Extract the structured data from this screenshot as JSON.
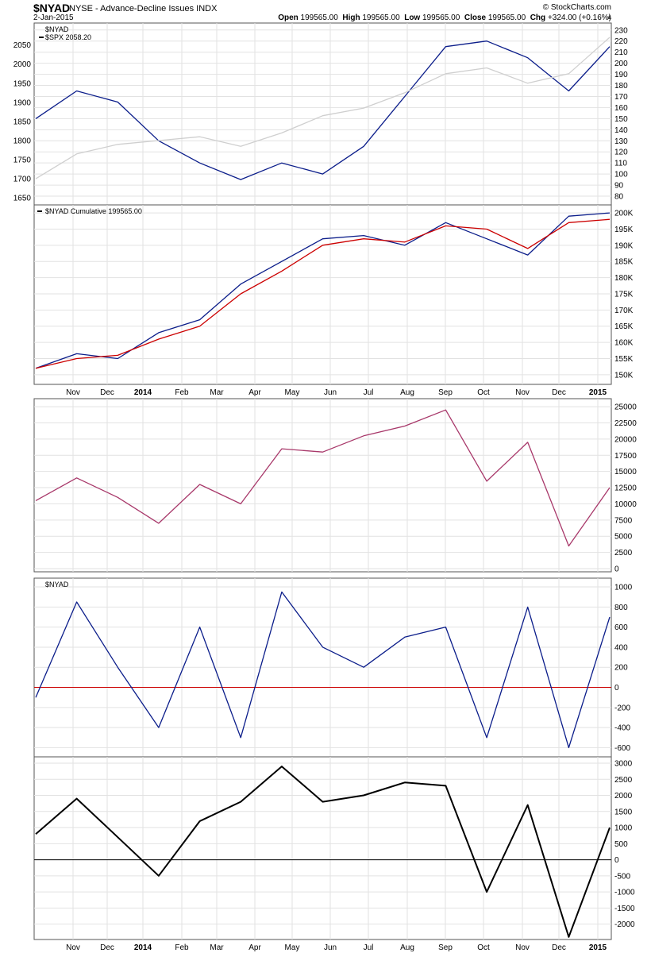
{
  "header": {
    "symbol": "$NYAD",
    "subtitle": "NYSE - Advance-Decline Issues  INDX",
    "date": "2-Jan-2015",
    "credit": "© StockCharts.com",
    "open_label": "Open",
    "open": "199565.00",
    "high_label": "High",
    "high": "199565.00",
    "low_label": "Low",
    "low": "199565.00",
    "close_label": "Close",
    "close": "199565.00",
    "chg_label": "Chg",
    "chg": "+324.00 (+0.16%)",
    "arrow": "▲"
  },
  "colors": {
    "navy": "#0b1d8a",
    "red": "#cc0000",
    "gray": "#cfcfcf",
    "plum": "#a8386a",
    "black": "#000000",
    "grid": "#e2e2e2",
    "frame": "#555555"
  },
  "x_axis": {
    "labels": [
      "Nov",
      "Dec",
      "2014",
      "Feb",
      "Mar",
      "Apr",
      "May",
      "Jun",
      "Jul",
      "Aug",
      "Sep",
      "Oct",
      "Nov",
      "Dec",
      "2015"
    ],
    "bold": [
      "2014",
      "2015"
    ]
  },
  "chart_data": [
    {
      "type": "line",
      "panel": "price",
      "legend": [
        "$NYAD",
        "$SPX 2058.20"
      ],
      "left_ticks": [
        2050,
        2000,
        1950,
        1900,
        1850,
        1800,
        1750,
        1700,
        1650
      ],
      "right_ticks": [
        230,
        220,
        210,
        200,
        190,
        180,
        170,
        160,
        150,
        140,
        130,
        120,
        110,
        100,
        90,
        80
      ],
      "left_ylim": [
        1640,
        2095
      ],
      "right_ylim": [
        75,
        232
      ],
      "series": [
        {
          "name": "$NYAD",
          "axis": "right",
          "x": [
            0,
            1,
            2,
            3,
            4,
            5,
            6,
            7,
            8,
            9,
            10,
            11,
            12,
            13,
            14
          ],
          "values": [
            150,
            175,
            165,
            130,
            110,
            95,
            110,
            100,
            125,
            170,
            215,
            220,
            205,
            175,
            215
          ]
        },
        {
          "name": "$SPX 2058.20",
          "axis": "left",
          "x": [
            0,
            1,
            2,
            3,
            4,
            5,
            6,
            7,
            8,
            9,
            10,
            11,
            12,
            13,
            14
          ],
          "values": [
            1700,
            1765,
            1790,
            1800,
            1810,
            1785,
            1820,
            1865,
            1885,
            1925,
            1975,
            1990,
            1950,
            1975,
            2070
          ]
        }
      ]
    },
    {
      "type": "line",
      "panel": "cumulative",
      "legend": [
        "$NYAD Cumulative 199565.00"
      ],
      "right_ticks": [
        "200K",
        "195K",
        "190K",
        "185K",
        "180K",
        "175K",
        "170K",
        "165K",
        "160K",
        "155K",
        "150K"
      ],
      "ylim": [
        148,
        201
      ],
      "series": [
        {
          "name": "$NYAD Cumulative 199565.00",
          "x": [
            0,
            1,
            2,
            3,
            4,
            5,
            6,
            7,
            8,
            9,
            10,
            11,
            12,
            13,
            14
          ],
          "values": [
            152,
            156.5,
            155,
            163,
            167,
            178,
            185,
            192,
            193,
            190,
            197,
            192,
            187,
            199,
            200
          ]
        },
        {
          "x": [
            0,
            1,
            2,
            3,
            4,
            5,
            6,
            7,
            8,
            9,
            10,
            11,
            12,
            13,
            14
          ],
          "values": [
            152,
            155,
            156,
            161,
            165,
            175,
            182,
            190,
            192,
            191,
            196,
            195,
            189,
            197,
            198
          ]
        }
      ]
    },
    {
      "type": "line",
      "panel": "oscillator-1",
      "right_ticks": [
        25000,
        22500,
        20000,
        17500,
        15000,
        12500,
        10000,
        7500,
        5000,
        2500,
        0
      ],
      "ylim": [
        0,
        25500
      ],
      "series": [
        {
          "x": [
            0,
            1,
            2,
            3,
            4,
            5,
            6,
            7,
            8,
            9,
            10,
            11,
            12,
            13,
            14
          ],
          "values": [
            10500,
            14000,
            11000,
            7000,
            13000,
            10000,
            18500,
            18000,
            20500,
            22000,
            24500,
            13500,
            19500,
            3500,
            12500
          ]
        }
      ]
    },
    {
      "type": "line",
      "panel": "oscillator-2",
      "legend": [
        "$NYAD"
      ],
      "right_ticks": [
        1000,
        800,
        600,
        400,
        200,
        0,
        -200,
        -400,
        -600
      ],
      "ylim": [
        -660,
        1040
      ],
      "zero_line": 0,
      "series": [
        {
          "name": "$NYAD",
          "x": [
            0,
            1,
            2,
            3,
            4,
            5,
            6,
            7,
            8,
            9,
            10,
            11,
            12,
            13,
            14
          ],
          "values": [
            -100,
            850,
            200,
            -400,
            600,
            -500,
            950,
            400,
            200,
            500,
            600,
            -500,
            800,
            -600,
            700
          ]
        }
      ]
    },
    {
      "type": "line",
      "panel": "oscillator-3",
      "right_ticks": [
        3000,
        2500,
        2000,
        1500,
        1000,
        500,
        0,
        -500,
        -1000,
        -1500,
        -2000
      ],
      "ylim": [
        -2380,
        3050
      ],
      "zero_line": 0,
      "series": [
        {
          "x": [
            0,
            1,
            2,
            3,
            4,
            5,
            6,
            7,
            8,
            9,
            10,
            11,
            12,
            13,
            14
          ],
          "values": [
            800,
            1900,
            700,
            -500,
            1200,
            1800,
            2900,
            1800,
            2000,
            2400,
            2300,
            -1000,
            1700,
            -2400,
            1000
          ]
        }
      ]
    }
  ]
}
